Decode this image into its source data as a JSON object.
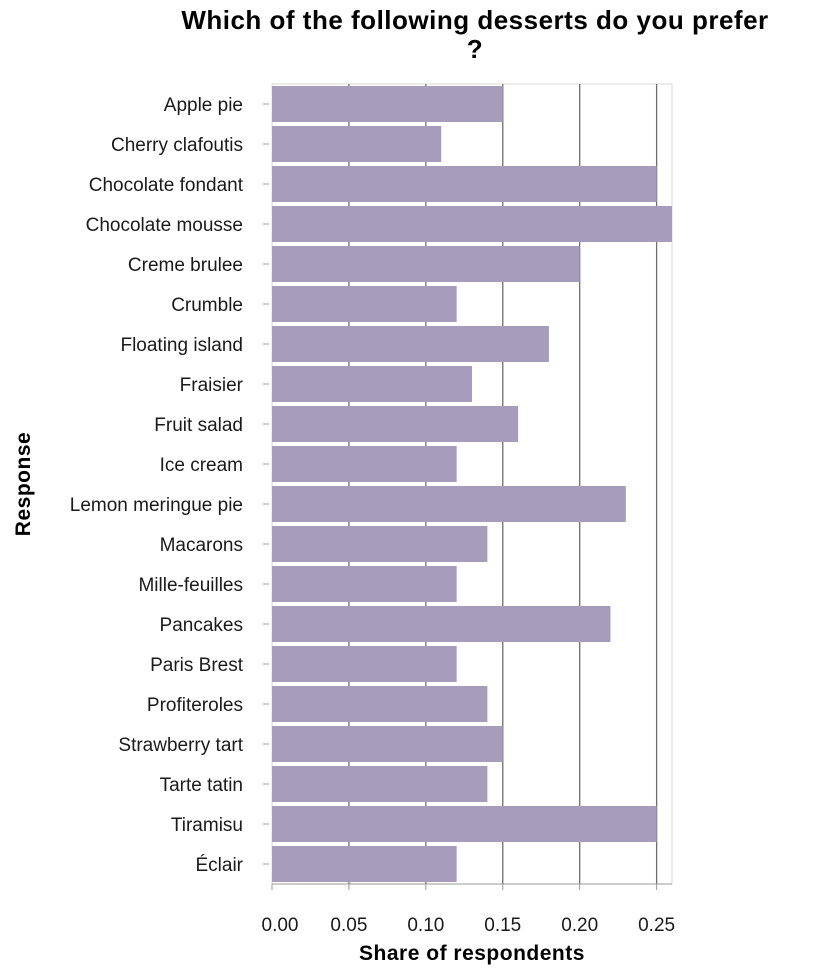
{
  "chart_data": {
    "type": "bar",
    "orientation": "horizontal",
    "title_line1": "Which of the following desserts do you prefer",
    "title_line2": "?",
    "xlabel": "Share of respondents",
    "ylabel": "Response",
    "xlim": [
      0,
      0.26
    ],
    "xticks": [
      "0.00",
      "0.05",
      "0.10",
      "0.15",
      "0.20",
      "0.25"
    ],
    "grid": "vertical",
    "bar_color": "#a89cbd",
    "categories": [
      "Apple pie",
      "Cherry clafoutis",
      "Chocolate fondant",
      "Chocolate mousse",
      "Creme brulee",
      "Crumble",
      "Floating island",
      "Fraisier",
      "Fruit salad",
      "Ice cream",
      "Lemon meringue pie",
      "Macarons",
      "Mille-feuilles",
      "Pancakes",
      "Paris Brest",
      "Profiteroles",
      "Strawberry tart",
      "Tarte tatin",
      "Tiramisu",
      "Éclair"
    ],
    "values": [
      0.15,
      0.11,
      0.25,
      0.26,
      0.2,
      0.12,
      0.18,
      0.13,
      0.16,
      0.12,
      0.23,
      0.14,
      0.12,
      0.22,
      0.12,
      0.14,
      0.15,
      0.14,
      0.25,
      0.12
    ]
  }
}
